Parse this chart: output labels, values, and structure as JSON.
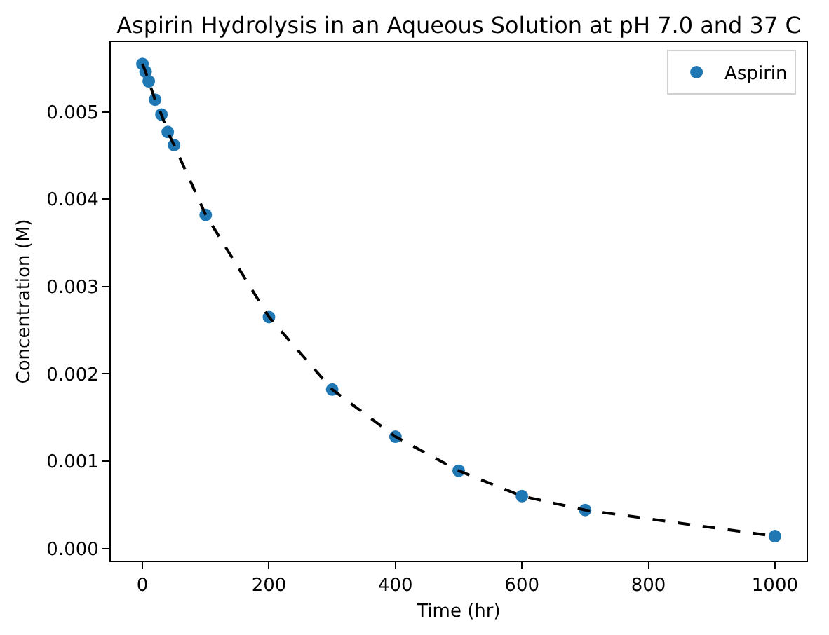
{
  "chart_data": {
    "type": "scatter",
    "title": "Aspirin Hydrolysis in an Aqueous Solution at pH 7.0 and 37 C",
    "xlabel": "Time (hr)",
    "ylabel": "Concentration (M)",
    "x": [
      0,
      5,
      10,
      20,
      30,
      40,
      50,
      100,
      200,
      300,
      400,
      500,
      600,
      700,
      1000
    ],
    "series": [
      {
        "name": "Aspirin",
        "color": "#1f77b4",
        "marker": "circle",
        "values": [
          0.00555,
          0.00546,
          0.00535,
          0.00514,
          0.00497,
          0.00477,
          0.00462,
          0.00382,
          0.00265,
          0.00182,
          0.00128,
          0.00089,
          0.0006,
          0.00044,
          0.00014
        ]
      },
      {
        "type": "line",
        "color": "#000000",
        "line_style": "dashed",
        "values": [
          0.00555,
          0.00546,
          0.00535,
          0.00514,
          0.00497,
          0.00477,
          0.00462,
          0.00382,
          0.00265,
          0.00182,
          0.00128,
          0.00089,
          0.0006,
          0.00044,
          0.00014
        ]
      }
    ],
    "xlim": [
      -50,
      1050
    ],
    "ylim": [
      -0.00014,
      0.0058
    ],
    "xticks": [
      0,
      200,
      400,
      600,
      800,
      1000
    ],
    "yticks": [
      {
        "value": 0,
        "label": "0.000"
      },
      0.001,
      0.002,
      0.003,
      0.004,
      0.005
    ],
    "grid": false,
    "legend": "top right"
  }
}
